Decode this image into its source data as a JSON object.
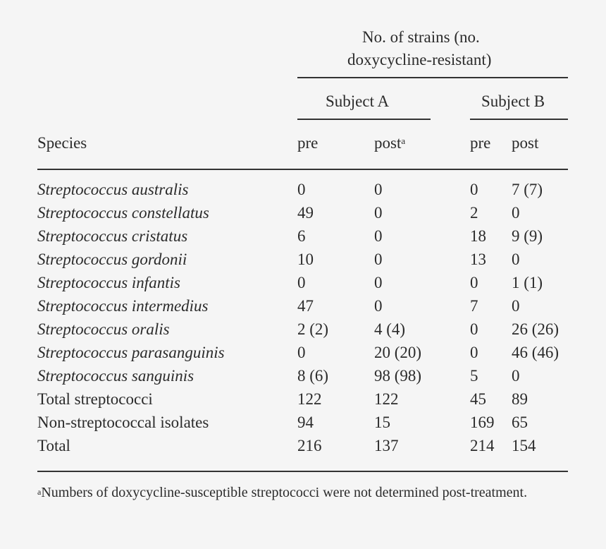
{
  "header": {
    "group_title_line1": "No. of strains (no.",
    "group_title_line2": "doxycycline-resistant)",
    "subject_a": "Subject A",
    "subject_b": "Subject B",
    "species_label": "Species",
    "pre": "pre",
    "post": "post",
    "post_footnote_mark": "a"
  },
  "rows": [
    {
      "species": "Streptococcus australis",
      "a_pre": "0",
      "a_post": "0",
      "b_pre": "0",
      "b_post": "7 (7)"
    },
    {
      "species": "Streptococcus constellatus",
      "a_pre": "49",
      "a_post": "0",
      "b_pre": "2",
      "b_post": "0"
    },
    {
      "species": "Streptococcus cristatus",
      "a_pre": "6",
      "a_post": "0",
      "b_pre": "18",
      "b_post": "9 (9)"
    },
    {
      "species": "Streptococcus gordonii",
      "a_pre": "10",
      "a_post": "0",
      "b_pre": "13",
      "b_post": "0"
    },
    {
      "species": "Streptococcus infantis",
      "a_pre": "0",
      "a_post": "0",
      "b_pre": "0",
      "b_post": "1 (1)"
    },
    {
      "species": "Streptococcus intermedius",
      "a_pre": "47",
      "a_post": "0",
      "b_pre": "7",
      "b_post": "0"
    },
    {
      "species": "Streptococcus oralis",
      "a_pre": "2 (2)",
      "a_post": "4 (4)",
      "b_pre": "0",
      "b_post": "26 (26)"
    },
    {
      "species": "Streptococcus parasanguinis",
      "a_pre": "0",
      "a_post": "20 (20)",
      "b_pre": "0",
      "b_post": "46 (46)"
    },
    {
      "species": "Streptococcus sanguinis",
      "a_pre": "8 (6)",
      "a_post": "98 (98)",
      "b_pre": "5",
      "b_post": "0"
    }
  ],
  "totals": [
    {
      "label": "Total streptococci",
      "a_pre": "122",
      "a_post": "122",
      "b_pre": "45",
      "b_post": "89"
    },
    {
      "label": "Non-streptococcal isolates",
      "a_pre": "94",
      "a_post": "15",
      "b_pre": "169",
      "b_post": "65"
    },
    {
      "label": "Total",
      "a_pre": "216",
      "a_post": "137",
      "b_pre": "214",
      "b_post": "154"
    }
  ],
  "footnote": {
    "mark": "a",
    "text": "Numbers of doxycycline-susceptible streptococci were not determined post-treatment."
  }
}
